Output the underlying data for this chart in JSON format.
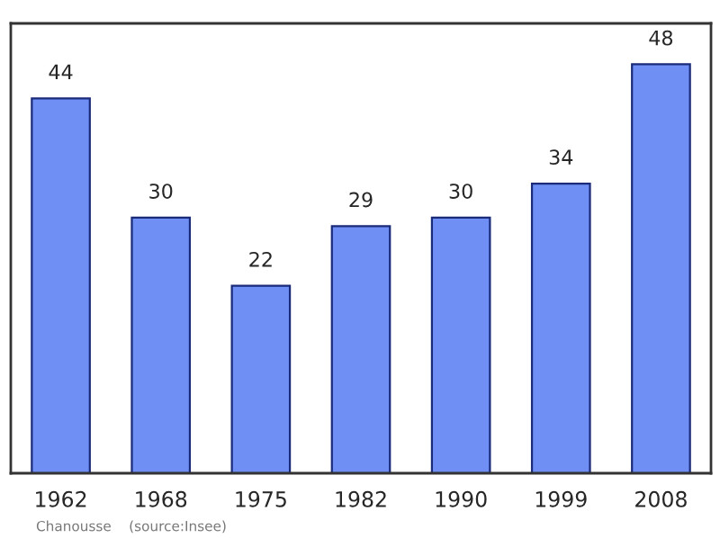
{
  "chart_data": {
    "type": "bar",
    "categories": [
      "1962",
      "1968",
      "1975",
      "1982",
      "1990",
      "1999",
      "2008"
    ],
    "values": [
      44,
      30,
      22,
      29,
      30,
      34,
      48
    ],
    "color": "#6f8ff5",
    "data_labels": true,
    "grid": false,
    "annotations": [
      "Chanousse    (source:Insee)"
    ]
  }
}
